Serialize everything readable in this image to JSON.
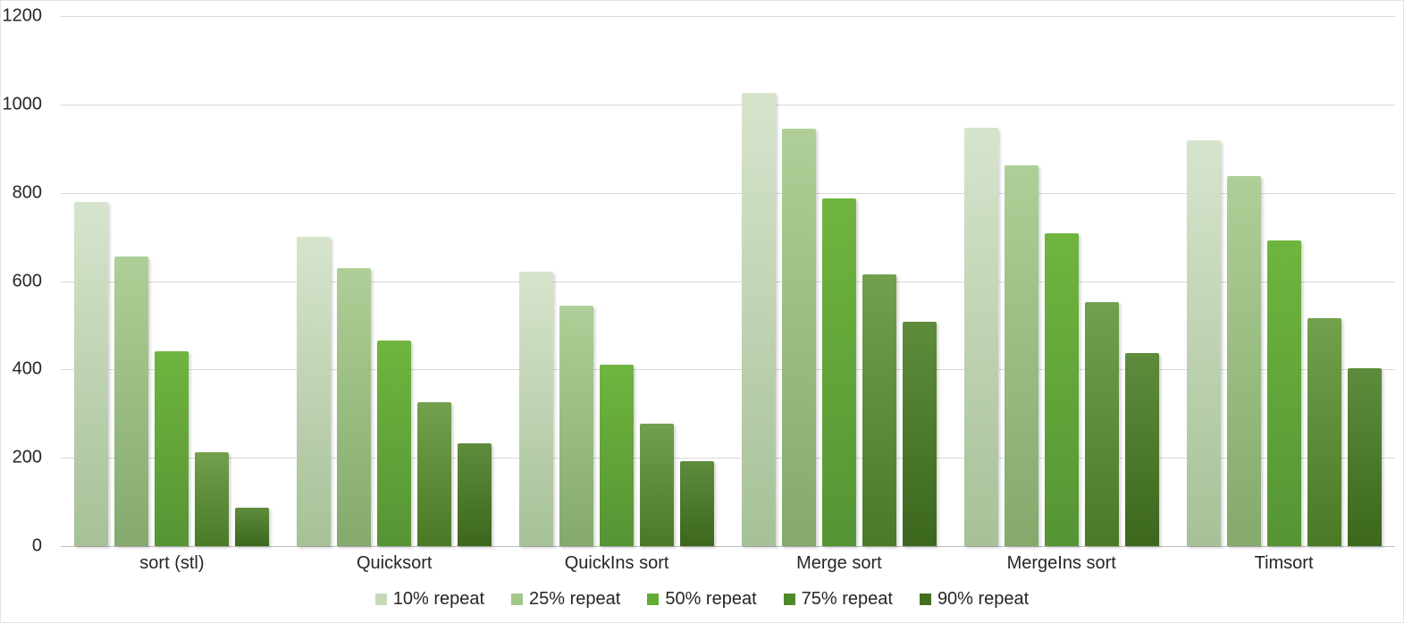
{
  "chart_data": {
    "type": "bar",
    "title": "",
    "xlabel": "",
    "ylabel": "",
    "categories": [
      "sort (stl)",
      "Quicksort",
      "QuickIns sort",
      "Merge sort",
      "MergeIns sort",
      "Timsort"
    ],
    "series": [
      {
        "name": "10% repeat",
        "values": [
          780,
          700,
          622,
          1027,
          947,
          918
        ],
        "color_top": "#d7e4cd",
        "color_bottom": "#a6c197",
        "legend_color": "#c7dab8"
      },
      {
        "name": "25% repeat",
        "values": [
          655,
          630,
          545,
          945,
          862,
          838
        ],
        "color_top": "#aecf97",
        "color_bottom": "#85a96c",
        "legend_color": "#a3c788"
      },
      {
        "name": "50% repeat",
        "values": [
          441,
          465,
          410,
          788,
          708,
          692
        ],
        "color_top": "#6fb53e",
        "color_bottom": "#569434",
        "legend_color": "#63ac33"
      },
      {
        "name": "75% repeat",
        "values": [
          213,
          326,
          277,
          616,
          552,
          516
        ],
        "color_top": "#72a04c",
        "color_bottom": "#4a7a26",
        "legend_color": "#4f882c"
      },
      {
        "name": "90% repeat",
        "values": [
          88,
          233,
          193,
          507,
          438,
          403
        ],
        "color_top": "#5e8c3c",
        "color_bottom": "#3c671d",
        "legend_color": "#436f20"
      }
    ],
    "ylim": [
      0,
      1200
    ],
    "yticks": [
      0,
      200,
      400,
      600,
      800,
      1000,
      1200
    ],
    "grid": true,
    "legend_position": "bottom",
    "colors_note": "bars shaded with vertical gradient, light top to darker bottom"
  }
}
